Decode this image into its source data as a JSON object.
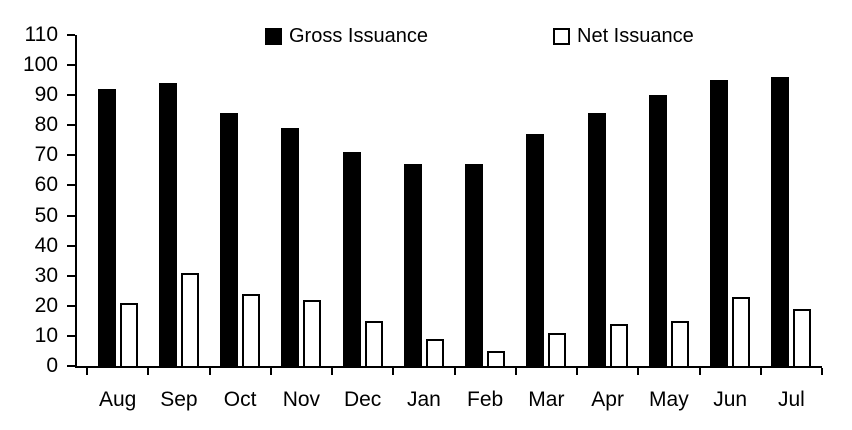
{
  "chart_data": {
    "type": "bar",
    "categories": [
      "Aug",
      "Sep",
      "Oct",
      "Nov",
      "Dec",
      "Jan",
      "Feb",
      "Mar",
      "Apr",
      "May",
      "Jun",
      "Jul"
    ],
    "series": [
      {
        "name": "Gross Issuance",
        "fill": "#000000",
        "values": [
          92,
          94,
          84,
          79,
          71,
          67,
          67,
          77,
          84,
          90,
          95,
          96
        ]
      },
      {
        "name": "Net Issuance",
        "fill": "#ffffff",
        "outline": "#000000",
        "values": [
          21,
          31,
          24,
          22,
          15,
          9,
          5,
          11,
          14,
          15,
          23,
          19
        ]
      }
    ],
    "title": "",
    "xlabel": "",
    "ylabel": "",
    "ylim": [
      0,
      110
    ],
    "yticks": [
      0,
      10,
      20,
      30,
      40,
      50,
      60,
      70,
      80,
      90,
      100,
      110
    ],
    "grid": false,
    "legend_position": "top",
    "axis_color": "#000000",
    "background": "#ffffff"
  }
}
